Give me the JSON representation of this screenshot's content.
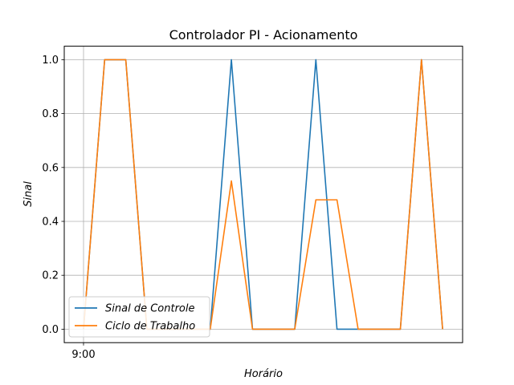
{
  "chart_data": {
    "type": "line",
    "title": "Controlador PI - Acionamento",
    "xlabel": "Horário",
    "ylabel": "Sinal",
    "x_tick_labels": [
      "9:00"
    ],
    "y_tick_labels": [
      "0.0",
      "0.2",
      "0.4",
      "0.6",
      "0.8",
      "1.0"
    ],
    "y_ticks": [
      0,
      0.2,
      0.4,
      0.6,
      0.8,
      1.0
    ],
    "ylim": [
      -0.05,
      1.05
    ],
    "grid": true,
    "legend_position": "lower-left",
    "series": [
      {
        "name": "Sinal de Controle",
        "color": "#1f77b4",
        "values": [
          0,
          1,
          1,
          0,
          0,
          0,
          0,
          1,
          0,
          0,
          0,
          1,
          0,
          0,
          0,
          0,
          1,
          0
        ]
      },
      {
        "name": "Ciclo de Trabalho",
        "color": "#ff7f0e",
        "values": [
          0,
          1,
          1,
          0,
          0,
          0,
          0,
          0.55,
          0,
          0,
          0,
          0.48,
          0.48,
          0,
          0,
          0,
          1,
          0
        ]
      }
    ]
  }
}
